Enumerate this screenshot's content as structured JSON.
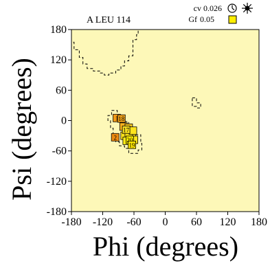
{
  "chart_data": {
    "type": "scatter",
    "title": "A LEU 114",
    "xlabel": "Phi (degrees)",
    "ylabel": "Psi (degrees)",
    "xlim": [
      -180,
      180
    ],
    "ylim": [
      -180,
      180
    ],
    "x_ticks": [
      -180,
      -120,
      -60,
      0,
      60,
      120,
      180
    ],
    "y_ticks": [
      180,
      120,
      60,
      0,
      -60,
      -120,
      -180
    ],
    "x_tick_labels": [
      "-180",
      "-120",
      "-60",
      "0",
      "60",
      "120",
      "180"
    ],
    "y_tick_labels": [
      "180",
      "120",
      "60",
      "0",
      "-60",
      "-120",
      "-180"
    ],
    "grid": false,
    "background_color": "#fdf8b8",
    "legend": {
      "placement": "top-right",
      "cv_label": "cv",
      "cv_value": "0.026",
      "gf_label": "Gf",
      "gf_value": "0.05",
      "gf_swatch_color": "#ffee00",
      "icons": [
        "clock-icon",
        "sun-icon"
      ]
    },
    "contours": [
      {
        "name": "upper-left-region",
        "points": [
          [
            -180,
            180
          ],
          [
            -180,
            155
          ],
          [
            -175,
            155
          ],
          [
            -175,
            140
          ],
          [
            -165,
            140
          ],
          [
            -165,
            125
          ],
          [
            -158,
            125
          ],
          [
            -158,
            112
          ],
          [
            -150,
            112
          ],
          [
            -150,
            103
          ],
          [
            -138,
            103
          ],
          [
            -138,
            98
          ],
          [
            -125,
            98
          ],
          [
            -125,
            94
          ],
          [
            -117,
            94
          ],
          [
            -117,
            90
          ],
          [
            -108,
            90
          ],
          [
            -108,
            94
          ],
          [
            -95,
            94
          ],
          [
            -95,
            100
          ],
          [
            -85,
            100
          ],
          [
            -85,
            108
          ],
          [
            -78,
            108
          ],
          [
            -78,
            118
          ],
          [
            -70,
            118
          ],
          [
            -70,
            128
          ],
          [
            -62,
            128
          ],
          [
            -62,
            140
          ],
          [
            -62,
            160
          ],
          [
            -55,
            160
          ],
          [
            -55,
            170
          ],
          [
            -52,
            170
          ],
          [
            -52,
            180
          ]
        ]
      },
      {
        "name": "alpha-region",
        "points": [
          [
            -103,
            20
          ],
          [
            -92,
            20
          ],
          [
            -92,
            12
          ],
          [
            -85,
            12
          ],
          [
            -85,
            5
          ],
          [
            -78,
            5
          ],
          [
            -78,
            -2
          ],
          [
            -70,
            -2
          ],
          [
            -70,
            -10
          ],
          [
            -63,
            -10
          ],
          [
            -63,
            -20
          ],
          [
            -55,
            -20
          ],
          [
            -55,
            -28
          ],
          [
            -47,
            -28
          ],
          [
            -47,
            -45
          ],
          [
            -45,
            -45
          ],
          [
            -45,
            -58
          ],
          [
            -52,
            -58
          ],
          [
            -52,
            -65
          ],
          [
            -70,
            -65
          ],
          [
            -70,
            -55
          ],
          [
            -78,
            -55
          ],
          [
            -78,
            -50
          ],
          [
            -88,
            -50
          ],
          [
            -88,
            -42
          ],
          [
            -95,
            -42
          ],
          [
            -95,
            -30
          ],
          [
            -100,
            -30
          ],
          [
            -100,
            -15
          ],
          [
            -105,
            -15
          ],
          [
            -105,
            0
          ],
          [
            -110,
            0
          ],
          [
            -110,
            10
          ],
          [
            -103,
            10
          ],
          [
            -103,
            20
          ]
        ]
      },
      {
        "name": "left-handed-region",
        "points": [
          [
            52,
            45
          ],
          [
            60,
            45
          ],
          [
            60,
            35
          ],
          [
            68,
            35
          ],
          [
            68,
            25
          ],
          [
            60,
            25
          ],
          [
            60,
            28
          ],
          [
            52,
            28
          ],
          [
            52,
            45
          ]
        ]
      }
    ],
    "points": [
      {
        "label": "1",
        "phi": -93,
        "psi": 5,
        "color": "#f39a15"
      },
      {
        "label": "18",
        "phi": -84,
        "psi": 4,
        "color": "#f2a41b"
      },
      {
        "label": "2",
        "phi": -96,
        "psi": -33,
        "color": "#ed8a12"
      },
      {
        "label": "17",
        "phi": -75,
        "psi": -18,
        "color": "#f4dc20"
      },
      {
        "label": "20",
        "phi": -68,
        "psi": -38,
        "color": "#ffee00"
      },
      {
        "label": "19",
        "phi": -64,
        "psi": -48,
        "color": "#ffe600"
      },
      {
        "label": "",
        "phi": -80,
        "psi": -12,
        "color": "#f7b21e"
      },
      {
        "label": "",
        "phi": -70,
        "psi": -14,
        "color": "#f9c823"
      },
      {
        "label": "",
        "phi": -66,
        "psi": -22,
        "color": "#f9d323"
      },
      {
        "label": "",
        "phi": -64,
        "psi": -30,
        "color": "#fbe31d"
      },
      {
        "label": "",
        "phi": -78,
        "psi": -30,
        "color": "#fce21c"
      },
      {
        "label": "",
        "phi": -70,
        "psi": -28,
        "color": "#fde51b"
      },
      {
        "label": "",
        "phi": -60,
        "psi": -38,
        "color": "#fee61a"
      },
      {
        "label": "",
        "phi": -74,
        "psi": -40,
        "color": "#ffea16"
      },
      {
        "label": "",
        "phi": -62,
        "psi": -20,
        "color": "#fde41c"
      }
    ]
  }
}
